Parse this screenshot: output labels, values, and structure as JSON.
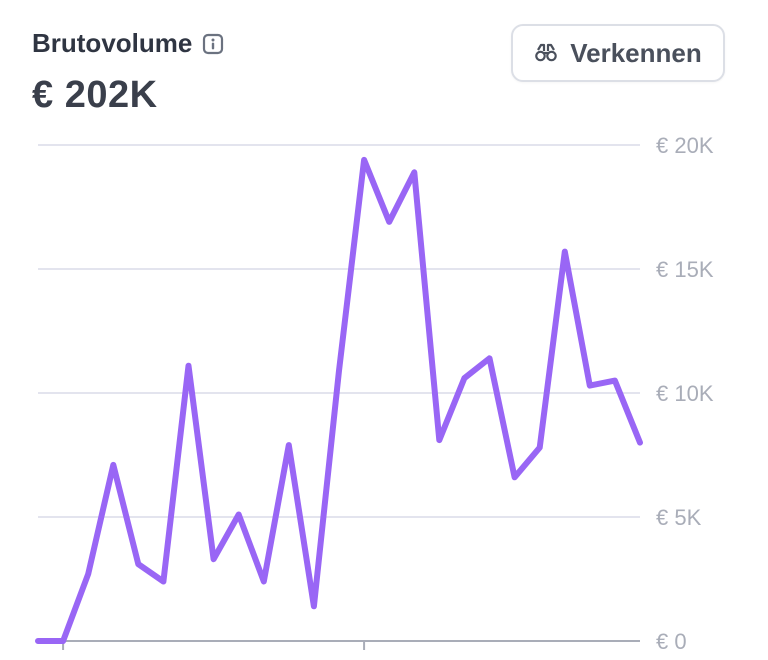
{
  "header": {
    "title": "Brutovolume",
    "total": "€ 202K",
    "explore_label": "Verkennen",
    "info_icon": "info-icon",
    "explore_icon": "binoculars-icon"
  },
  "colors": {
    "line": "#9966f5",
    "grid": "#dadce8",
    "axis": "#a9adb8",
    "text": "#2f3542"
  },
  "chart_data": {
    "type": "line",
    "title": "",
    "xlabel": "",
    "ylabel": "",
    "ylim": [
      0,
      20000
    ],
    "y_ticks": [
      {
        "value": 0,
        "label": "€ 0"
      },
      {
        "value": 5000,
        "label": "€ 5K"
      },
      {
        "value": 10000,
        "label": "€ 10K"
      },
      {
        "value": 15000,
        "label": "€ 15K"
      },
      {
        "value": 20000,
        "label": "€ 20K"
      }
    ],
    "x_tick_indices": [
      1,
      13
    ],
    "grid": true,
    "series": [
      {
        "values": [
          0,
          0,
          2700,
          7100,
          3100,
          2400,
          11100,
          3300,
          5100,
          2400,
          7900,
          1400,
          10900,
          19400,
          16900,
          18900,
          8100,
          10600,
          11400,
          6600,
          7800,
          15700,
          10300,
          10500,
          8000
        ]
      }
    ]
  }
}
